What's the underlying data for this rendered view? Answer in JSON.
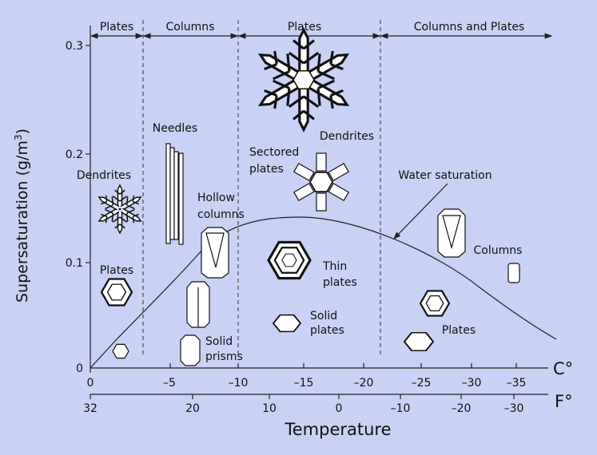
{
  "title_regimes": [
    "Plates",
    "Columns",
    "Plates",
    "Columns and Plates"
  ],
  "y_axis": {
    "label": "Supersaturation (g/m",
    "label_sup": "3",
    "label_end": ")",
    "ticks": [
      "0",
      "0.1",
      "0.2",
      "0.3"
    ]
  },
  "x_axis_c": {
    "unit": "C°",
    "ticks": [
      "0",
      "–5",
      "–10",
      "–15",
      "–20",
      "–25",
      "–30",
      "–35"
    ]
  },
  "x_axis_f": {
    "unit": "F°",
    "ticks": [
      "32",
      "20",
      "10",
      "0",
      "–10",
      "–20",
      "–30"
    ]
  },
  "x_label": "Temperature",
  "curve_label": "Water saturation",
  "crystals": {
    "dendrites_left": "Dendrites",
    "plates_left": "Plates",
    "needles": "Needles",
    "hollow_1": "Hollow",
    "hollow_2": "columns",
    "sectored_1": "Sectored",
    "sectored_2": "plates",
    "dendrites_top": "Dendrites",
    "thin_1": "Thin",
    "thin_2": "plates",
    "solid_plates_1": "Solid",
    "solid_plates_2": "plates",
    "solid_prisms_1": "Solid",
    "solid_prisms_2": "prisms",
    "columns_right": "Columns",
    "plates_right": "Plates"
  },
  "colors": {
    "background": "#c9d1f4",
    "line": "#222222",
    "crystal_fill": "#ffffff"
  }
}
